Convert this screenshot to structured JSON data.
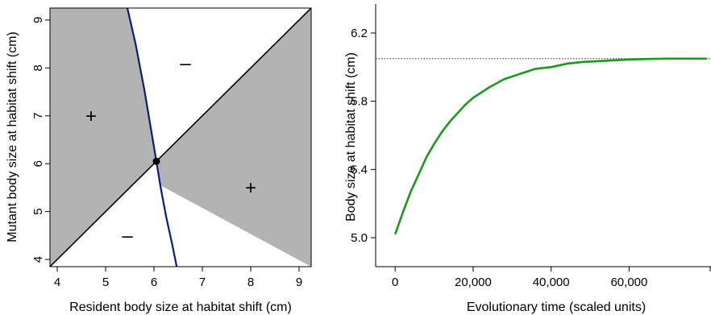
{
  "chart_data": [
    {
      "type": "heatmap",
      "subtype": "pairwise-invasibility-plot",
      "xlabel": "Resident body size at habitat shift (cm)",
      "ylabel": "Mutant body size at habitat shift (cm)",
      "xlim": [
        3.85,
        9.25
      ],
      "ylim": [
        3.85,
        9.25
      ],
      "xticks": [
        4,
        5,
        6,
        7,
        8,
        9
      ],
      "yticks": [
        4,
        5,
        6,
        7,
        8,
        9
      ],
      "fill_color": "#b3b3b3",
      "background_color": "#ffffff",
      "boundary_color": "#0a1a8a",
      "diagonal_color": "#000000",
      "boundary_curve": [
        {
          "x": 5.45,
          "y": 9.25
        },
        {
          "x": 5.62,
          "y": 8.5
        },
        {
          "x": 5.8,
          "y": 7.55
        },
        {
          "x": 5.95,
          "y": 6.65
        },
        {
          "x": 6.05,
          "y": 6.05
        },
        {
          "x": 6.13,
          "y": 5.55
        },
        {
          "x": 6.25,
          "y": 4.9
        },
        {
          "x": 6.38,
          "y": 4.3
        },
        {
          "x": 6.47,
          "y": 3.85
        }
      ],
      "singular_point": {
        "x": 6.05,
        "y": 6.05
      },
      "region_signs": [
        {
          "label": "+",
          "x": 4.7,
          "y": 7.0
        },
        {
          "label": "–",
          "x": 6.65,
          "y": 8.1
        },
        {
          "label": "+",
          "x": 8.0,
          "y": 5.5
        },
        {
          "label": "–",
          "x": 5.45,
          "y": 4.5
        }
      ]
    },
    {
      "type": "line",
      "xlabel": "Evolutionary time (scaled units)",
      "ylabel": "Body size at habitat shift (cm)",
      "xlim": [
        -5000,
        81000
      ],
      "ylim": [
        4.83,
        6.37
      ],
      "xticks": [
        0,
        20000,
        40000,
        60000
      ],
      "xtick_labels": [
        "0",
        "20,000",
        "40,000",
        "60,000"
      ],
      "yticks": [
        5.0,
        5.4,
        5.8,
        6.2
      ],
      "ytick_labels": [
        "5.0",
        "5.4",
        "5.8",
        "6.2"
      ],
      "reference_line": {
        "y": 6.05,
        "style": "dotted",
        "color": "#333333"
      },
      "series": [
        {
          "color": "#1a9a1a",
          "x": [
            0,
            2000,
            4000,
            6000,
            8000,
            10000,
            12000,
            14000,
            16000,
            18000,
            20000,
            24000,
            28000,
            32000,
            36000,
            40000,
            44000,
            48000,
            52000,
            56000,
            60000,
            65000,
            70000,
            75000,
            80000
          ],
          "y": [
            5.02,
            5.15,
            5.27,
            5.37,
            5.47,
            5.55,
            5.62,
            5.68,
            5.73,
            5.78,
            5.82,
            5.88,
            5.93,
            5.96,
            5.99,
            6.0,
            6.02,
            6.03,
            6.035,
            6.04,
            6.045,
            6.048,
            6.05,
            6.05,
            6.05
          ]
        }
      ]
    }
  ]
}
